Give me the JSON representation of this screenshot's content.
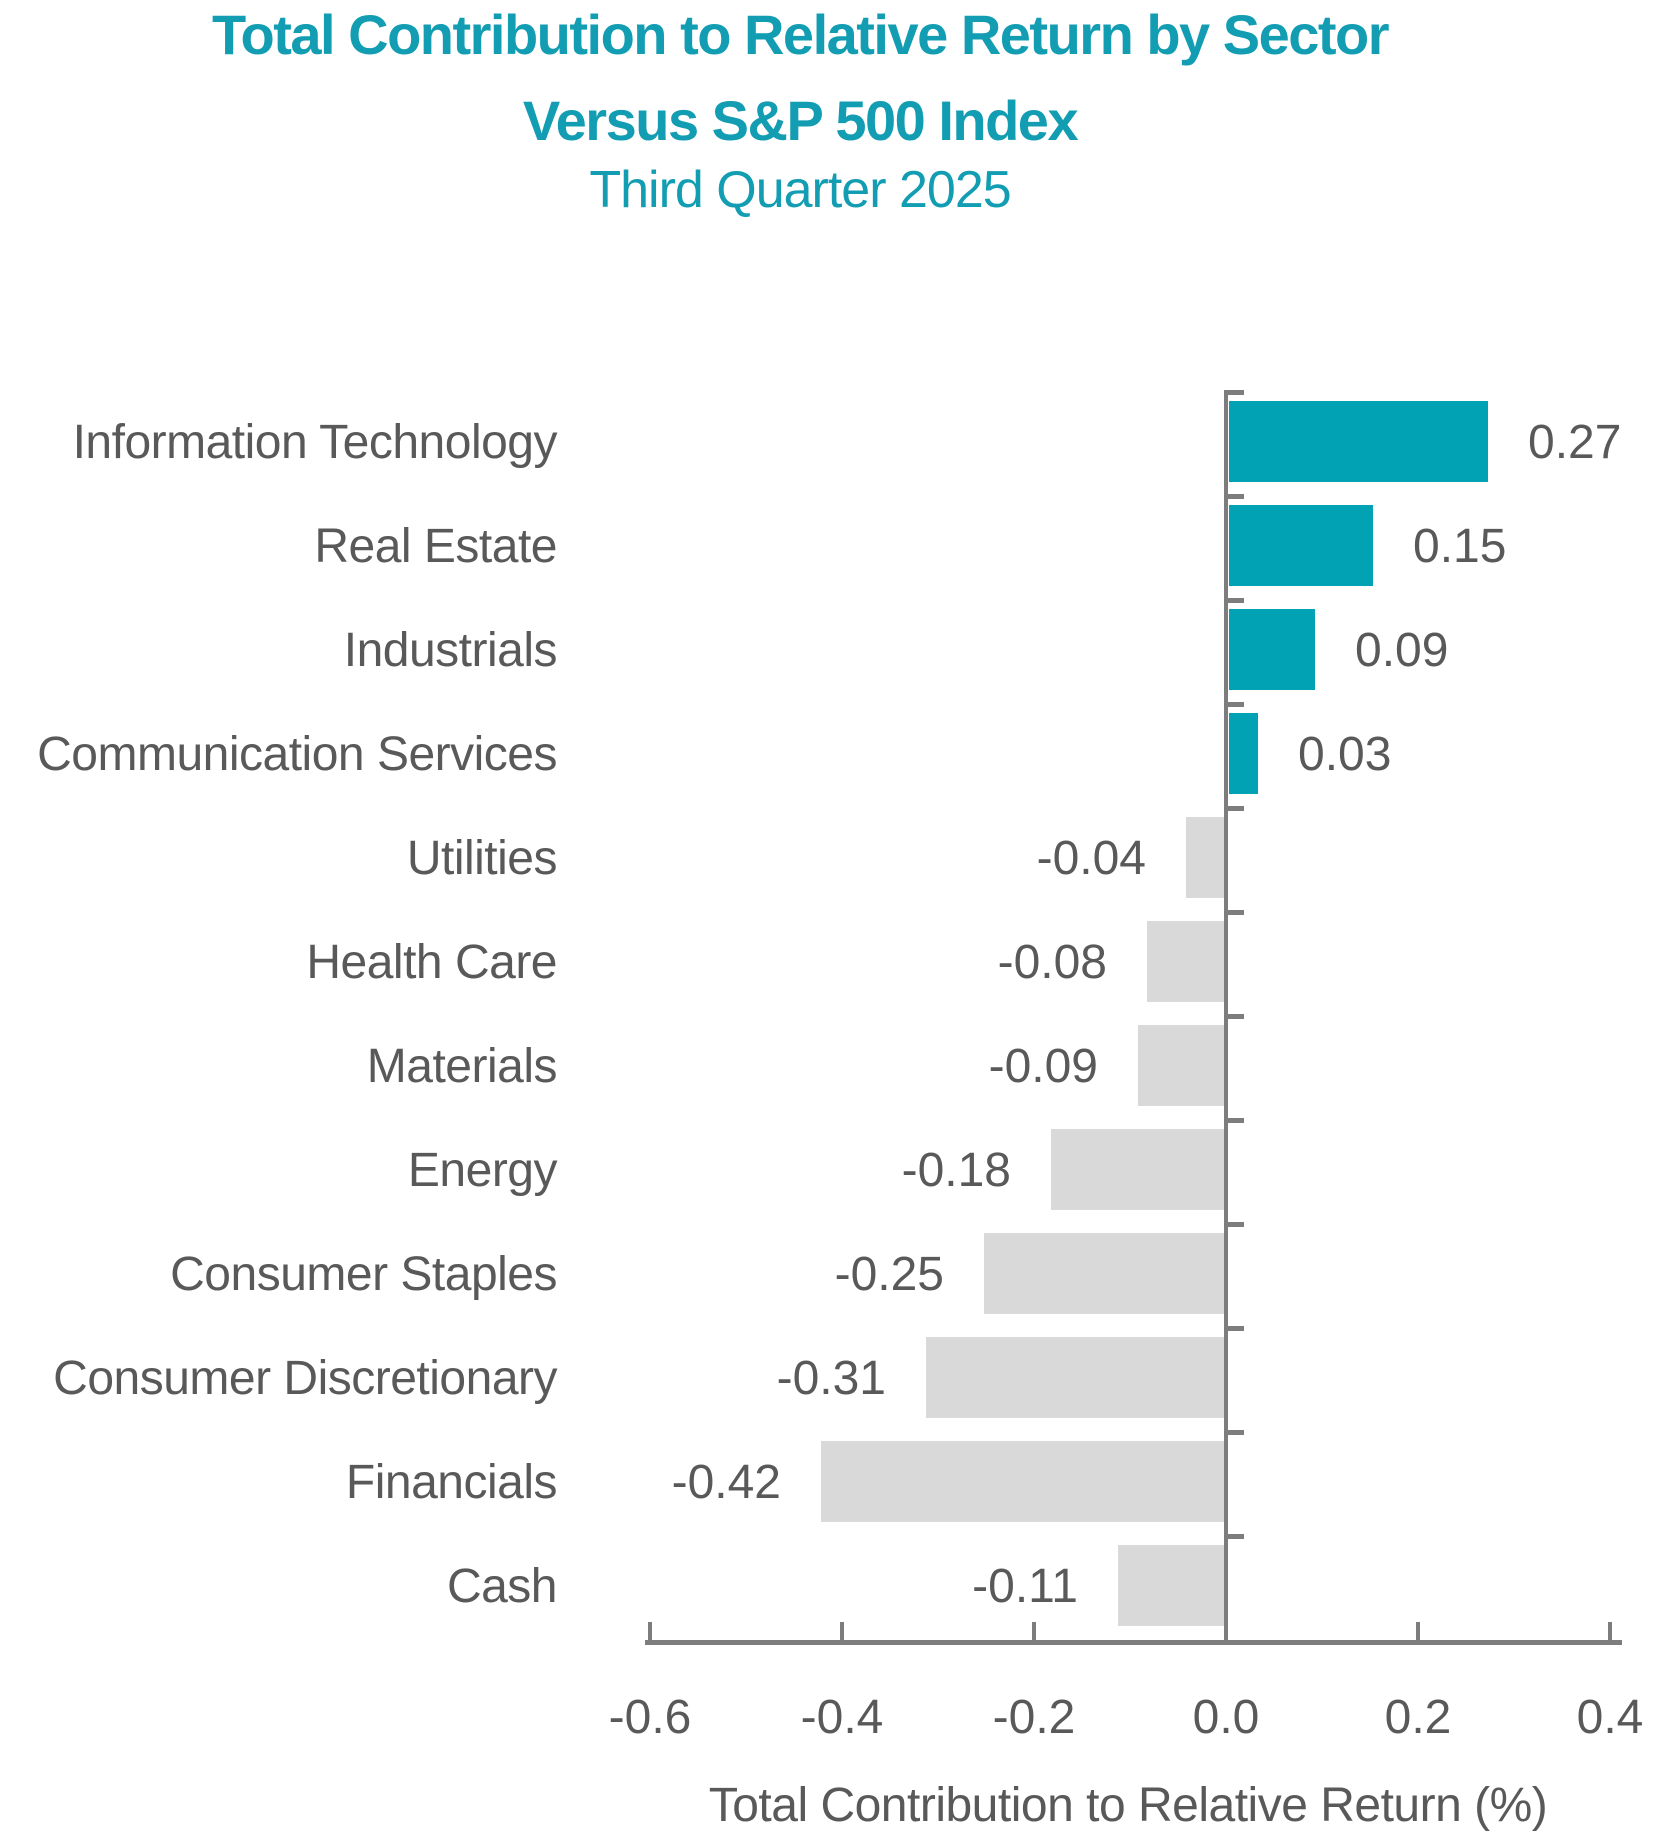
{
  "header": {
    "title_line1": "Total Contribution to Relative Return by Sector",
    "title_line2": "Versus S&P 500 Index",
    "subtitle": "Third Quarter 2025"
  },
  "chart_data": {
    "type": "bar",
    "orientation": "horizontal",
    "title": "Total Contribution to Relative Return by Sector Versus S&P 500 Index",
    "subtitle": "Third Quarter 2025",
    "xlabel": "Total Contribution to Relative Return (%)",
    "xlim": [
      -0.6,
      0.4
    ],
    "x_ticks": [
      -0.6,
      -0.4,
      -0.2,
      0.0,
      0.2,
      0.4
    ],
    "x_tick_labels": [
      "-0.6",
      "-0.4",
      "-0.2",
      "0.0",
      "0.2",
      "0.4"
    ],
    "grid": false,
    "legend": false,
    "categories": [
      "Information Technology",
      "Real Estate",
      "Industrials",
      "Communication Services",
      "Utilities",
      "Health Care",
      "Materials",
      "Energy",
      "Consumer Staples",
      "Consumer Discretionary",
      "Financials",
      "Cash"
    ],
    "values": [
      0.27,
      0.15,
      0.09,
      0.03,
      -0.04,
      -0.08,
      -0.09,
      -0.18,
      -0.25,
      -0.31,
      -0.42,
      -0.11
    ],
    "value_labels": [
      "0.27",
      "0.15",
      "0.09",
      "0.03",
      "-0.04",
      "-0.08",
      "-0.09",
      "-0.18",
      "-0.25",
      "-0.31",
      "-0.42",
      "-0.11"
    ],
    "colors": {
      "positive_bar": "#00A2B3",
      "negative_bar": "#D9D9D9",
      "axis_line": "#7D7D7D",
      "label_text": "#595959",
      "title_text": "#129DB2"
    }
  }
}
